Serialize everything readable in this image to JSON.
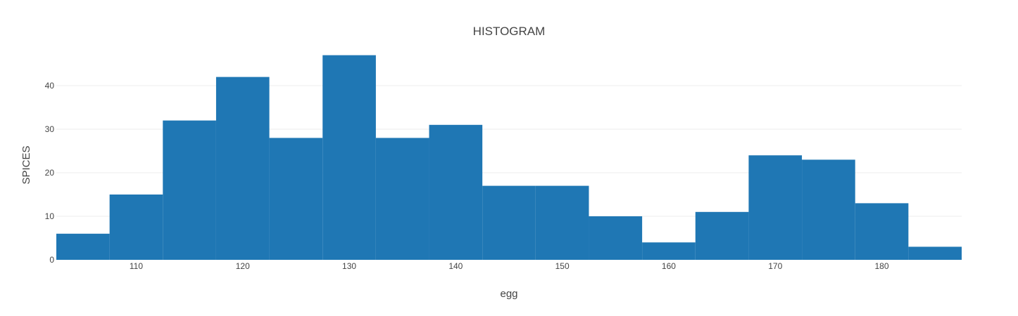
{
  "chart_data": {
    "type": "bar",
    "title": "HISTOGRAM",
    "xlabel": "egg",
    "ylabel": "SPICES",
    "bin_width": 5,
    "bins": [
      {
        "start": 102.5,
        "end": 107.5,
        "count": 6
      },
      {
        "start": 107.5,
        "end": 112.5,
        "count": 15
      },
      {
        "start": 112.5,
        "end": 117.5,
        "count": 32
      },
      {
        "start": 117.5,
        "end": 122.5,
        "count": 42
      },
      {
        "start": 122.5,
        "end": 127.5,
        "count": 28
      },
      {
        "start": 127.5,
        "end": 132.5,
        "count": 47
      },
      {
        "start": 132.5,
        "end": 137.5,
        "count": 28
      },
      {
        "start": 137.5,
        "end": 142.5,
        "count": 31
      },
      {
        "start": 142.5,
        "end": 147.5,
        "count": 17
      },
      {
        "start": 147.5,
        "end": 152.5,
        "count": 17
      },
      {
        "start": 152.5,
        "end": 157.5,
        "count": 10
      },
      {
        "start": 157.5,
        "end": 162.5,
        "count": 4
      },
      {
        "start": 162.5,
        "end": 167.5,
        "count": 11
      },
      {
        "start": 167.5,
        "end": 172.5,
        "count": 24
      },
      {
        "start": 172.5,
        "end": 177.5,
        "count": 23
      },
      {
        "start": 177.5,
        "end": 182.5,
        "count": 13
      },
      {
        "start": 182.5,
        "end": 187.5,
        "count": 3
      }
    ],
    "xlim": [
      102.5,
      187.5
    ],
    "ylim": [
      0,
      50
    ],
    "x_ticks": [
      110,
      120,
      130,
      140,
      150,
      160,
      170,
      180
    ],
    "y_ticks": [
      0,
      10,
      20,
      30,
      40
    ],
    "grid": true,
    "bar_color": "#1f77b4"
  }
}
